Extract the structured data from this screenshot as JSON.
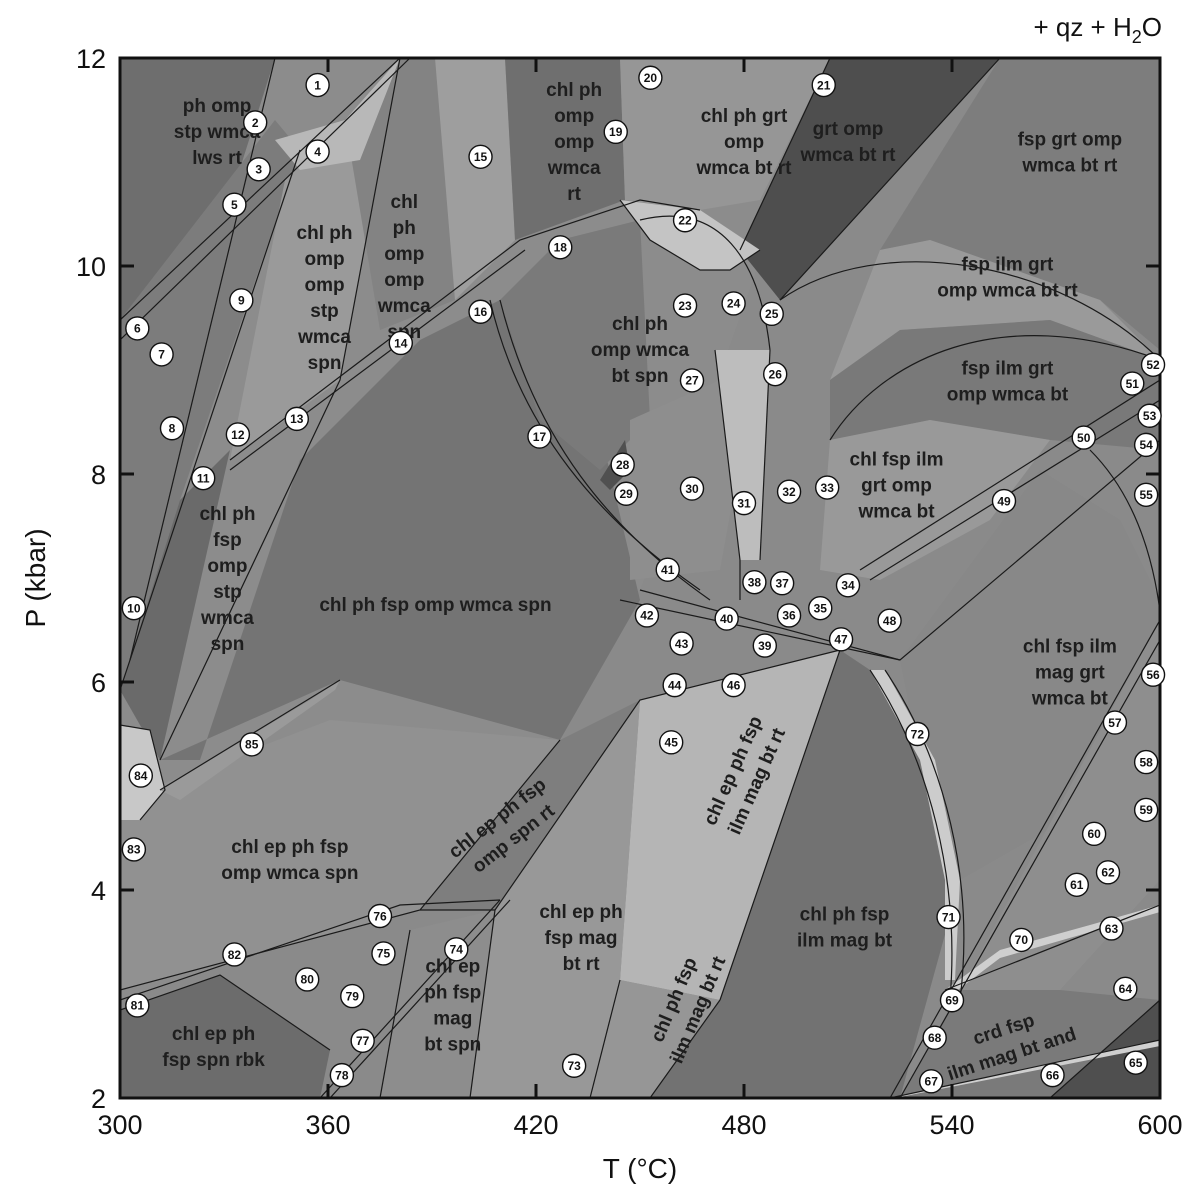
{
  "chart_data": {
    "type": "phase-diagram",
    "title": "",
    "overlay_label": "+ qz + H2O",
    "xlabel": "T (°C)",
    "ylabel": "P (kbar)",
    "xlim": [
      300,
      600
    ],
    "ylim": [
      2,
      12
    ],
    "x_ticks": [
      300,
      360,
      420,
      480,
      540,
      600
    ],
    "y_ticks": [
      2,
      4,
      6,
      8,
      10,
      12
    ],
    "grid": false,
    "fields": [
      {
        "label_lines": [
          "ph omp",
          "stp wmca",
          "lws rt"
        ],
        "T": 328,
        "P": 11.3
      },
      {
        "label_lines": [
          "chl ph",
          "omp",
          "omp",
          "stp",
          "wmca",
          "spn"
        ],
        "T": 359,
        "P": 9.7
      },
      {
        "label_lines": [
          "chl",
          "ph",
          "omp",
          "omp",
          "wmca",
          "spn"
        ],
        "T": 382,
        "P": 10.0
      },
      {
        "label_lines": [
          "chl ph",
          "omp",
          "omp",
          "wmca",
          "rt"
        ],
        "T": 431,
        "P": 11.2
      },
      {
        "label_lines": [
          "chl ph grt",
          "omp",
          "wmca bt rt"
        ],
        "T": 480,
        "P": 11.2
      },
      {
        "label_lines": [
          "grt omp",
          "wmca bt rt"
        ],
        "T": 510,
        "P": 11.2
      },
      {
        "label_lines": [
          "fsp grt omp",
          "wmca bt rt"
        ],
        "T": 574,
        "P": 11.1
      },
      {
        "label_lines": [
          "fsp ilm grt",
          "omp wmca bt rt"
        ],
        "T": 556,
        "P": 9.9
      },
      {
        "label_lines": [
          "fsp ilm grt",
          "omp wmca bt"
        ],
        "T": 556,
        "P": 8.9
      },
      {
        "label_lines": [
          "chl ph",
          "omp wmca",
          "bt spn"
        ],
        "T": 450,
        "P": 9.2
      },
      {
        "label_lines": [
          "chl fsp ilm",
          "grt omp",
          "wmca bt"
        ],
        "T": 524,
        "P": 7.9
      },
      {
        "label_lines": [
          "chl ph",
          "fsp",
          "omp",
          "stp",
          "wmca",
          "spn"
        ],
        "T": 331,
        "P": 7.0
      },
      {
        "label_lines": [
          "chl ph fsp omp wmca spn"
        ],
        "T": 391,
        "P": 6.75
      },
      {
        "label_lines": [
          "chl fsp ilm",
          "mag grt",
          "wmca bt"
        ],
        "T": 574,
        "P": 6.1
      },
      {
        "label_lines": [
          "chl ep ph fsp",
          "omp wmca spn"
        ],
        "T": 349,
        "P": 4.3
      },
      {
        "label_lines": [
          "chl ep ph fsp",
          "omp spn rt"
        ],
        "T": 411,
        "P": 4.6,
        "rotate": -38
      },
      {
        "label_lines": [
          "chl ep ph fsp",
          "ilm mag bt rt"
        ],
        "T": 480,
        "P": 5.1,
        "rotate": -66
      },
      {
        "label_lines": [
          "chl ep ph",
          "fsp mag",
          "bt rt"
        ],
        "T": 433,
        "P": 3.55
      },
      {
        "label_lines": [
          "chl ep",
          "ph fsp",
          "mag",
          "bt spn"
        ],
        "T": 396,
        "P": 2.9
      },
      {
        "label_lines": [
          "chl ph fsp",
          "ilm mag bt rt"
        ],
        "T": 463,
        "P": 2.9,
        "rotate": -67
      },
      {
        "label_lines": [
          "chl ph fsp",
          "ilm mag bt"
        ],
        "T": 509,
        "P": 3.65
      },
      {
        "label_lines": [
          "crd fsp",
          "ilm mag bt and"
        ],
        "T": 556,
        "P": 2.55,
        "rotate": -18
      },
      {
        "label_lines": [
          "chl ep ph",
          "fsp spn rbk"
        ],
        "T": 327,
        "P": 2.5
      }
    ],
    "numbered_fields": [
      {
        "n": "1",
        "T": 357,
        "P": 11.74
      },
      {
        "n": "2",
        "T": 339,
        "P": 11.38
      },
      {
        "n": "3",
        "T": 340,
        "P": 10.93
      },
      {
        "n": "4",
        "T": 357,
        "P": 11.1
      },
      {
        "n": "5",
        "T": 333,
        "P": 10.59
      },
      {
        "n": "6",
        "T": 305,
        "P": 9.4
      },
      {
        "n": "7",
        "T": 312,
        "P": 9.15
      },
      {
        "n": "8",
        "T": 315,
        "P": 8.44
      },
      {
        "n": "9",
        "T": 335,
        "P": 9.67
      },
      {
        "n": "10",
        "T": 304,
        "P": 6.71
      },
      {
        "n": "11",
        "T": 324,
        "P": 7.96
      },
      {
        "n": "12",
        "T": 334,
        "P": 8.38
      },
      {
        "n": "13",
        "T": 351,
        "P": 8.53
      },
      {
        "n": "14",
        "T": 381,
        "P": 9.26
      },
      {
        "n": "15",
        "T": 404,
        "P": 11.05
      },
      {
        "n": "16",
        "T": 404,
        "P": 9.56
      },
      {
        "n": "17",
        "T": 421,
        "P": 8.36
      },
      {
        "n": "18",
        "T": 427,
        "P": 10.18
      },
      {
        "n": "19",
        "T": 443,
        "P": 11.29
      },
      {
        "n": "20",
        "T": 453,
        "P": 11.81
      },
      {
        "n": "21",
        "T": 503,
        "P": 11.74
      },
      {
        "n": "22",
        "T": 463,
        "P": 10.44
      },
      {
        "n": "23",
        "T": 463,
        "P": 9.62
      },
      {
        "n": "24",
        "T": 477,
        "P": 9.64
      },
      {
        "n": "25",
        "T": 488,
        "P": 9.54
      },
      {
        "n": "26",
        "T": 489,
        "P": 8.96
      },
      {
        "n": "27",
        "T": 465,
        "P": 8.9
      },
      {
        "n": "28",
        "T": 445,
        "P": 8.09
      },
      {
        "n": "29",
        "T": 446,
        "P": 7.81
      },
      {
        "n": "30",
        "T": 465,
        "P": 7.86
      },
      {
        "n": "31",
        "T": 480,
        "P": 7.72
      },
      {
        "n": "32",
        "T": 493,
        "P": 7.83
      },
      {
        "n": "33",
        "T": 504,
        "P": 7.87
      },
      {
        "n": "34",
        "T": 510,
        "P": 6.93
      },
      {
        "n": "35",
        "T": 502,
        "P": 6.71
      },
      {
        "n": "36",
        "T": 493,
        "P": 6.64
      },
      {
        "n": "37",
        "T": 491,
        "P": 6.95
      },
      {
        "n": "38",
        "T": 483,
        "P": 6.96
      },
      {
        "n": "39",
        "T": 486,
        "P": 6.35
      },
      {
        "n": "40",
        "T": 475,
        "P": 6.61
      },
      {
        "n": "41",
        "T": 458,
        "P": 7.08
      },
      {
        "n": "42",
        "T": 452,
        "P": 6.64
      },
      {
        "n": "43",
        "T": 462,
        "P": 6.37
      },
      {
        "n": "44",
        "T": 460,
        "P": 5.97
      },
      {
        "n": "45",
        "T": 459,
        "P": 5.42
      },
      {
        "n": "46",
        "T": 477,
        "P": 5.97
      },
      {
        "n": "47",
        "T": 508,
        "P": 6.41
      },
      {
        "n": "48",
        "T": 522,
        "P": 6.59
      },
      {
        "n": "49",
        "T": 555,
        "P": 7.74
      },
      {
        "n": "50",
        "T": 578,
        "P": 8.35
      },
      {
        "n": "51",
        "T": 592,
        "P": 8.87
      },
      {
        "n": "52",
        "T": 598,
        "P": 9.05
      },
      {
        "n": "53",
        "T": 597,
        "P": 8.56
      },
      {
        "n": "54",
        "T": 596,
        "P": 8.28
      },
      {
        "n": "55",
        "T": 596,
        "P": 7.8
      },
      {
        "n": "56",
        "T": 598,
        "P": 6.07
      },
      {
        "n": "57",
        "T": 587,
        "P": 5.61
      },
      {
        "n": "58",
        "T": 596,
        "P": 5.23
      },
      {
        "n": "59",
        "T": 596,
        "P": 4.77
      },
      {
        "n": "60",
        "T": 581,
        "P": 4.54
      },
      {
        "n": "61",
        "T": 576,
        "P": 4.05
      },
      {
        "n": "62",
        "T": 585,
        "P": 4.17
      },
      {
        "n": "63",
        "T": 586,
        "P": 3.63
      },
      {
        "n": "64",
        "T": 590,
        "P": 3.05
      },
      {
        "n": "65",
        "T": 593,
        "P": 2.34
      },
      {
        "n": "66",
        "T": 569,
        "P": 2.22
      },
      {
        "n": "67",
        "T": 534,
        "P": 2.16
      },
      {
        "n": "68",
        "T": 535,
        "P": 2.58
      },
      {
        "n": "69",
        "T": 540,
        "P": 2.94
      },
      {
        "n": "70",
        "T": 560,
        "P": 3.52
      },
      {
        "n": "71",
        "T": 539,
        "P": 3.74
      },
      {
        "n": "72",
        "T": 530,
        "P": 5.5
      },
      {
        "n": "73",
        "T": 431,
        "P": 2.31
      },
      {
        "n": "74",
        "T": 397,
        "P": 3.43
      },
      {
        "n": "75",
        "T": 376,
        "P": 3.39
      },
      {
        "n": "76",
        "T": 375,
        "P": 3.75
      },
      {
        "n": "77",
        "T": 370,
        "P": 2.55
      },
      {
        "n": "78",
        "T": 364,
        "P": 2.22
      },
      {
        "n": "79",
        "T": 367,
        "P": 2.98
      },
      {
        "n": "80",
        "T": 354,
        "P": 3.14
      },
      {
        "n": "81",
        "T": 305,
        "P": 2.89
      },
      {
        "n": "82",
        "T": 333,
        "P": 3.38
      },
      {
        "n": "83",
        "T": 304,
        "P": 4.39
      },
      {
        "n": "84",
        "T": 306,
        "P": 5.1
      },
      {
        "n": "85",
        "T": 338,
        "P": 5.4
      }
    ]
  }
}
